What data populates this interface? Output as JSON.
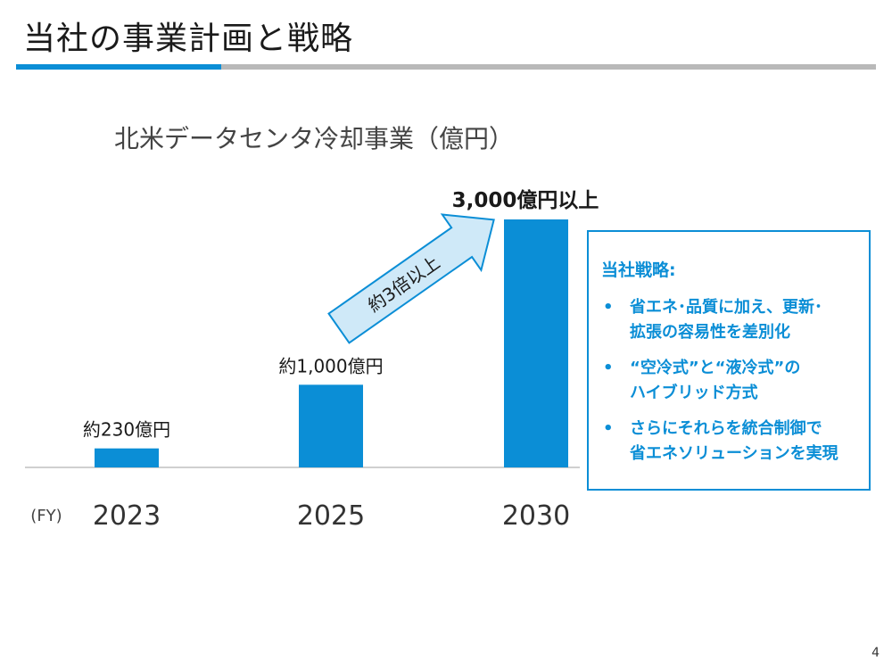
{
  "slide": {
    "title": "当社の事業計画と戦略",
    "page_number": "4"
  },
  "colors": {
    "accent": "#0b8ed6",
    "arrow_fill": "#cfe9f8",
    "rule_gray": "#b9b9b9",
    "baseline": "#d0d0d0"
  },
  "chart_data": {
    "type": "bar",
    "title": "北米データセンタ冷却事業（億円）",
    "xlabel": "(FY)",
    "ylabel": "",
    "categories": [
      "2023",
      "2025",
      "2030"
    ],
    "values": [
      230,
      1000,
      3000
    ],
    "data_labels": [
      "約230億円",
      "約1,000億円",
      "3,000億円以上"
    ],
    "ylim": [
      0,
      3000
    ],
    "grid": false,
    "annotation": "約3倍以上"
  },
  "strategy": {
    "heading": "当社戦略:",
    "bullets": [
      [
        "省エネ･品質に加え、更新･",
        "拡張の容易性を差別化"
      ],
      [
        "“空冷式”と“液冷式”の",
        "ハイブリッド方式"
      ],
      [
        "さらにそれらを統合制御で",
        "省エネソリューションを実現"
      ]
    ]
  }
}
